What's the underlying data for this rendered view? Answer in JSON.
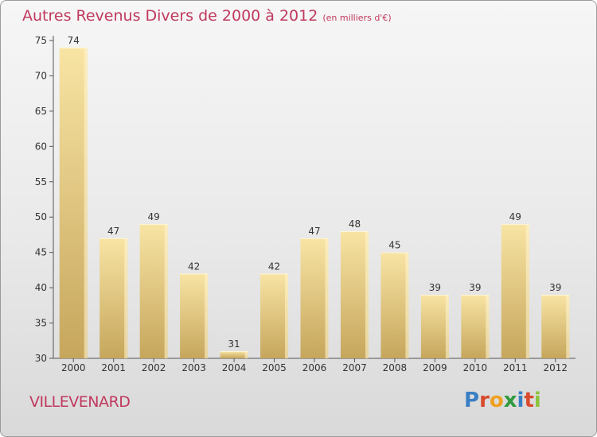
{
  "title": "Autres Revenus Divers de 2000 à 2012",
  "subtitle": "(en milliers d'€)",
  "town": "VILLEVENARD",
  "logo": {
    "letters": [
      "P",
      "r",
      "o",
      "x",
      "i",
      "t",
      "i"
    ]
  },
  "colors": {
    "title": "#c0395e",
    "bar_light": "#f7e2a0",
    "bar_dark": "#c8a860",
    "axis": "#555555"
  },
  "chart_data": {
    "type": "bar",
    "title": "Autres Revenus Divers de 2000 à 2012",
    "subtitle": "(en milliers d'€)",
    "categories": [
      "2000",
      "2001",
      "2002",
      "2003",
      "2004",
      "2005",
      "2006",
      "2007",
      "2008",
      "2009",
      "2010",
      "2011",
      "2012"
    ],
    "values": [
      74,
      47,
      49,
      42,
      31,
      42,
      47,
      48,
      45,
      39,
      39,
      49,
      39
    ],
    "data_labels": [
      "74",
      "47",
      "49",
      "42",
      "31",
      "42",
      "47",
      "48",
      "45",
      "39",
      "39",
      "49",
      "39"
    ],
    "ylim": [
      30,
      75
    ],
    "yticks": [
      30,
      35,
      40,
      45,
      50,
      55,
      60,
      65,
      70,
      75
    ],
    "ytick_labels": [
      "30",
      "35",
      "40",
      "45",
      "50",
      "55",
      "60",
      "65",
      "70",
      "75"
    ],
    "xlabel": "",
    "ylabel": "",
    "grid": false,
    "legend": "none"
  }
}
